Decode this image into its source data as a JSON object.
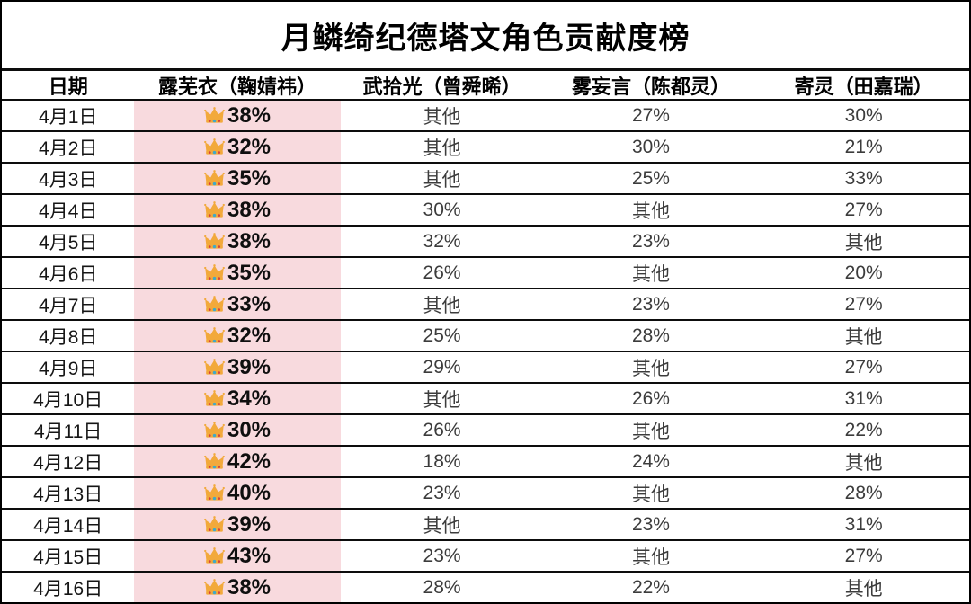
{
  "title": "月鳞绮纪德塔文角色贡献度榜",
  "colors": {
    "leader_highlight": "#f8dade",
    "border": "#0d0d0d",
    "value_text": "#3c3c3c",
    "crown_gold": "#f2a93b",
    "crown_gem_red": "#d8413c",
    "crown_gem_blue": "#3fa9c9"
  },
  "icons": {
    "leader_marker": "crown-icon"
  },
  "chart_data": {
    "type": "table",
    "title": "月鳞绮纪德塔文角色贡献度榜",
    "columns": [
      "日期",
      "露芜衣（鞠婧祎）",
      "武拾光（曾舜晞）",
      "雾妄言（陈都灵）",
      "寄灵（田嘉瑞）"
    ],
    "leader_column_index": 1,
    "other_label": "其他",
    "rows": [
      [
        "4月1日",
        "38%",
        "其他",
        "27%",
        "30%"
      ],
      [
        "4月2日",
        "32%",
        "其他",
        "30%",
        "21%"
      ],
      [
        "4月3日",
        "35%",
        "其他",
        "25%",
        "33%"
      ],
      [
        "4月4日",
        "38%",
        "30%",
        "其他",
        "27%"
      ],
      [
        "4月5日",
        "38%",
        "32%",
        "23%",
        "其他"
      ],
      [
        "4月6日",
        "35%",
        "26%",
        "其他",
        "20%"
      ],
      [
        "4月7日",
        "33%",
        "其他",
        "23%",
        "27%"
      ],
      [
        "4月8日",
        "32%",
        "25%",
        "28%",
        "其他"
      ],
      [
        "4月9日",
        "39%",
        "29%",
        "其他",
        "27%"
      ],
      [
        "4月10日",
        "34%",
        "其他",
        "26%",
        "31%"
      ],
      [
        "4月11日",
        "30%",
        "26%",
        "其他",
        "22%"
      ],
      [
        "4月12日",
        "42%",
        "18%",
        "24%",
        "其他"
      ],
      [
        "4月13日",
        "40%",
        "23%",
        "其他",
        "28%"
      ],
      [
        "4月14日",
        "39%",
        "其他",
        "23%",
        "31%"
      ],
      [
        "4月15日",
        "43%",
        "23%",
        "其他",
        "27%"
      ],
      [
        "4月16日",
        "38%",
        "28%",
        "22%",
        "其他"
      ]
    ]
  }
}
